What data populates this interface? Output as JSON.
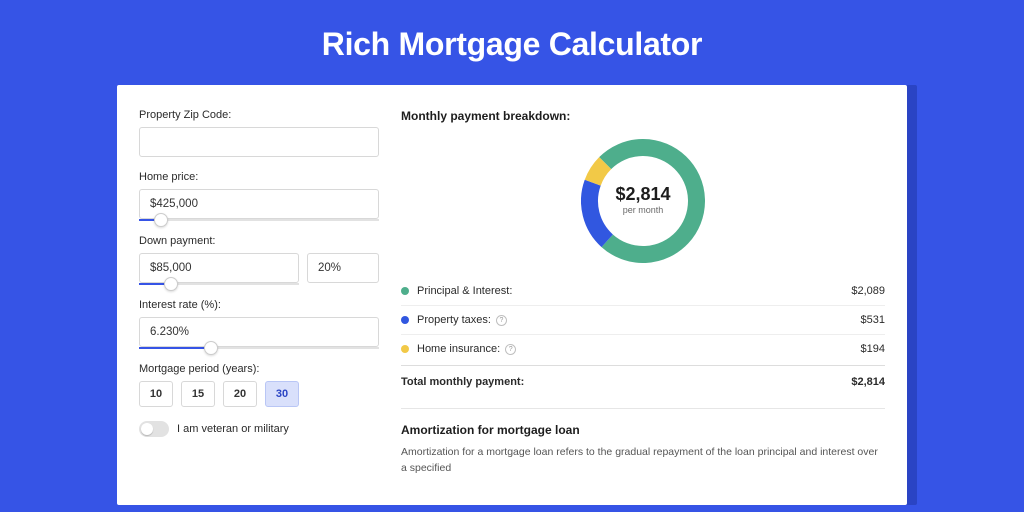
{
  "page": {
    "title": "Rich Mortgage Calculator",
    "background_color": "#3654e6",
    "card_shadow_color": "#2a44c4"
  },
  "form": {
    "zip": {
      "label": "Property Zip Code:",
      "value": ""
    },
    "home_price": {
      "label": "Home price:",
      "value": "$425,000",
      "slider": {
        "fill_pct": 9,
        "thumb_pct": 9,
        "fill_color": "#3654e6"
      }
    },
    "down_payment": {
      "label": "Down payment:",
      "value": "$85,000",
      "pct": "20%",
      "slider": {
        "fill_pct": 20,
        "thumb_pct": 20,
        "fill_color": "#3654e6"
      }
    },
    "interest_rate": {
      "label": "Interest rate (%):",
      "value": "6.230%",
      "slider": {
        "fill_pct": 30,
        "thumb_pct": 30,
        "fill_color": "#3654e6"
      }
    },
    "mortgage_period": {
      "label": "Mortgage period (years):",
      "options": [
        "10",
        "15",
        "20",
        "30"
      ],
      "selected_index": 3,
      "active_bg": "#d9e0fb",
      "active_border": "#b9c6f5",
      "active_color": "#2a44c4"
    },
    "veteran_toggle": {
      "label": "I am veteran or military",
      "on": false
    }
  },
  "breakdown": {
    "title": "Monthly payment breakdown:",
    "center_amount": "$2,814",
    "center_sub": "per month",
    "donut": {
      "type": "donut",
      "size": 124,
      "thickness": 17,
      "background_color": "#ffffff",
      "segments": [
        {
          "label": "Principal & Interest",
          "value": 2089,
          "color": "#4eae8c",
          "start_deg": -45,
          "sweep_deg": 267
        },
        {
          "label": "Property taxes",
          "value": 531,
          "color": "#3157e0",
          "start_deg": 222,
          "sweep_deg": 68
        },
        {
          "label": "Home insurance",
          "value": 194,
          "color": "#f2c947",
          "start_deg": 290,
          "sweep_deg": 25
        }
      ]
    },
    "rows": [
      {
        "label": "Principal & Interest:",
        "amount": "$2,089",
        "color": "#4eae8c",
        "info": false
      },
      {
        "label": "Property taxes:",
        "amount": "$531",
        "color": "#3157e0",
        "info": true
      },
      {
        "label": "Home insurance:",
        "amount": "$194",
        "color": "#f2c947",
        "info": true
      }
    ],
    "total": {
      "label": "Total monthly payment:",
      "amount": "$2,814"
    }
  },
  "amortization": {
    "title": "Amortization for mortgage loan",
    "body": "Amortization for a mortgage loan refers to the gradual repayment of the loan principal and interest over a specified"
  }
}
